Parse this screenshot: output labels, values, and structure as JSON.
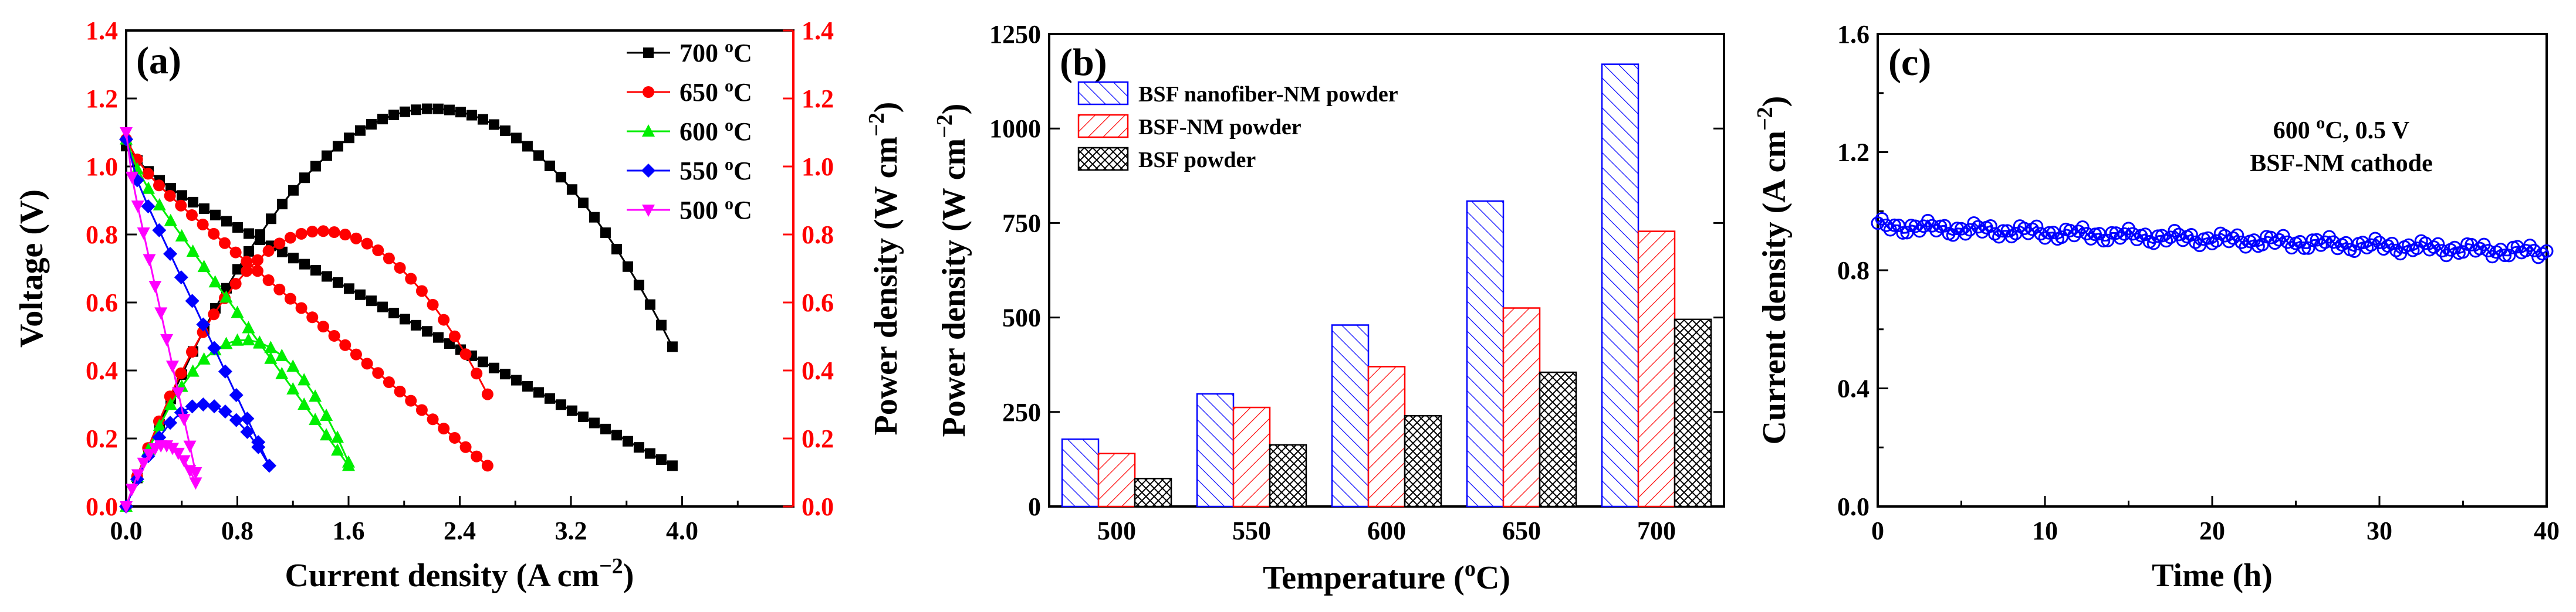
{
  "panels": {
    "a": {
      "label": "(a)",
      "xlabel": "Current density (A cm",
      "xlabel_sup": "−2",
      "xlabel_end": ")",
      "ylabel_left": "Voltage (V)",
      "ylabel_right": "Power density (W cm",
      "ylabel_right_sup": "−2",
      "ylabel_right_end": ")",
      "xticks": [
        "0.0",
        "0.8",
        "1.6",
        "2.4",
        "3.2",
        "4.0"
      ],
      "yticks_left": [
        "0.0",
        "0.2",
        "0.4",
        "0.6",
        "0.8",
        "1.0",
        "1.2",
        "1.4"
      ],
      "yticks_right": [
        "0.0",
        "0.2",
        "0.4",
        "0.6",
        "0.8",
        "1.0",
        "1.2",
        "1.4"
      ],
      "legend": [
        {
          "temp": "700",
          "unit": "C",
          "deg": "o",
          "color": "#000000",
          "marker": "square"
        },
        {
          "temp": "650",
          "unit": "C",
          "deg": "o",
          "color": "#ff0000",
          "marker": "circle"
        },
        {
          "temp": "600",
          "unit": "C",
          "deg": "o",
          "color": "#00ee00",
          "marker": "triangle-up"
        },
        {
          "temp": "550",
          "unit": "C",
          "deg": "o",
          "color": "#0000ff",
          "marker": "diamond"
        },
        {
          "temp": "500",
          "unit": "C",
          "deg": "o",
          "color": "#ff00ff",
          "marker": "triangle-down"
        }
      ],
      "colors": {
        "axis_right": "#ff0000"
      }
    },
    "b": {
      "label": "(b)",
      "xlabel": "Temperature (",
      "xlabel_sup": "o",
      "xlabel_end": "C)",
      "ylabel": "Power density (W cm",
      "ylabel_sup": "−2",
      "ylabel_end": ")",
      "yticks": [
        "0",
        "250",
        "500",
        "750",
        "1000",
        "1250"
      ],
      "legend": [
        {
          "label": "BSF nanofiber-NM powder",
          "color": "#0000ff",
          "hatch": "diag"
        },
        {
          "label": "BSF-NM powder",
          "color": "#ff0000",
          "hatch": "diag"
        },
        {
          "label": "BSF powder",
          "color": "#000000",
          "hatch": "cross"
        }
      ]
    },
    "c": {
      "label": "(c)",
      "annotation_line1_pre": "600 ",
      "annotation_line1_sup": "o",
      "annotation_line1_post": "C,  0.5 V",
      "annotation_line2": "BSF-NM cathode",
      "xlabel": "Time (h)",
      "ylabel": "Current density (A cm",
      "ylabel_sup": "−2",
      "ylabel_end": ")",
      "xticks": [
        "0",
        "10",
        "20",
        "30",
        "40"
      ],
      "yticks": [
        "0.0",
        "0.4",
        "0.8",
        "1.2",
        "1.6"
      ],
      "colors": {
        "series": "#0000ff"
      }
    }
  },
  "chart_data": [
    {
      "type": "line",
      "panel": "a",
      "title": "",
      "xlabel": "Current density (A cm−2)",
      "ylabel": "Voltage (V)",
      "y2label": "Power density (W cm−2)",
      "xlim": [
        0,
        4.8
      ],
      "ylim": [
        0,
        1.4
      ],
      "y2lim": [
        0,
        1.4
      ],
      "series": [
        {
          "name": "700 oC",
          "color": "#000000",
          "marker": "square",
          "ocv": 1.06,
          "v_end": 0.12,
          "i_max": 3.93,
          "p_max": 1.17,
          "i_pmax": 2.2,
          "p_end": 0.47
        },
        {
          "name": "650 oC",
          "color": "#ff0000",
          "marker": "circle",
          "ocv": 1.08,
          "v_end": 0.12,
          "i_max": 2.6,
          "p_max": 0.81,
          "i_pmax": 1.4,
          "p_end": 0.33
        },
        {
          "name": "600 oC",
          "color": "#00ee00",
          "marker": "triangle-up",
          "ocv": 1.08,
          "v_end": 0.12,
          "i_max": 1.6,
          "p_max": 0.49,
          "i_pmax": 0.85,
          "p_end": 0.13
        },
        {
          "name": "550 oC",
          "color": "#0000ff",
          "marker": "diamond",
          "ocv": 1.08,
          "v_end": 0.12,
          "i_max": 1.03,
          "p_max": 0.3,
          "i_pmax": 0.55,
          "p_end": 0.12
        },
        {
          "name": "500 oC",
          "color": "#ff00ff",
          "marker": "triangle-down",
          "ocv": 1.1,
          "v_end": 0.1,
          "i_max": 0.5,
          "p_max": 0.18,
          "i_pmax": 0.27,
          "p_end": 0.07
        }
      ]
    },
    {
      "type": "bar",
      "panel": "b",
      "title": "",
      "xlabel": "Temperature (oC)",
      "ylabel": "Power density (W cm−2)",
      "ylim": [
        0,
        1250
      ],
      "categories": [
        "500",
        "550",
        "600",
        "650",
        "700"
      ],
      "series": [
        {
          "name": "BSF nanofiber-NM powder",
          "values": [
            178,
            298,
            480,
            808,
            1170
          ]
        },
        {
          "name": "BSF-NM powder",
          "values": [
            140,
            262,
            370,
            525,
            728
          ]
        },
        {
          "name": "BSF powder",
          "values": [
            74,
            163,
            240,
            355,
            495
          ]
        }
      ]
    },
    {
      "type": "line",
      "panel": "c",
      "title": "",
      "xlabel": "Time (h)",
      "ylabel": "Current density (A cm−2)",
      "xlim": [
        0,
        40
      ],
      "ylim": [
        0,
        1.6
      ],
      "series": [
        {
          "name": "BSF-NM cathode",
          "color": "#0000ff",
          "marker": "circle-open",
          "start_value": 0.95,
          "end_value": 0.86,
          "noise": 0.025
        }
      ]
    }
  ]
}
